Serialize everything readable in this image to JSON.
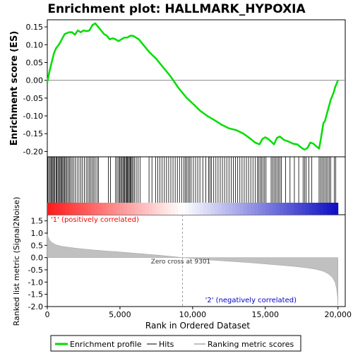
{
  "chart_data": {
    "type": "line",
    "title": "Enrichment plot: HALLMARK_HYPOXIA",
    "es_panel": {
      "ylabel": "Enrichment score (ES)",
      "ylim": [
        -0.215,
        0.17
      ],
      "yticks": [
        -0.2,
        -0.15,
        -0.1,
        -0.05,
        0.0,
        0.05,
        0.1,
        0.15
      ],
      "ytick_labels": [
        "-0.20",
        "-0.15",
        "-0.10",
        "-0.05",
        "0.00",
        "0.05",
        "0.10",
        "0.15"
      ],
      "series": [
        {
          "name": "Enrichment profile",
          "color": "#00dd00",
          "x": [
            0,
            150,
            300,
            450,
            600,
            800,
            1000,
            1200,
            1500,
            1700,
            1900,
            2100,
            2300,
            2500,
            2700,
            2900,
            3100,
            3300,
            3500,
            3700,
            3900,
            4100,
            4300,
            4500,
            4700,
            4900,
            5100,
            5300,
            5500,
            5700,
            5900,
            6100,
            6300,
            6600,
            7000,
            7500,
            8000,
            8500,
            9000,
            9300,
            9600,
            10000,
            10500,
            11000,
            11500,
            12000,
            12500,
            13000,
            13500,
            14000,
            14300,
            14600,
            14800,
            15000,
            15200,
            15400,
            15600,
            15800,
            16000,
            16300,
            16600,
            16900,
            17200,
            17500,
            17700,
            17900,
            18100,
            18300,
            18500,
            18700,
            18800,
            18900,
            19000,
            19100,
            19200,
            19300,
            19400,
            19500,
            19600,
            19700,
            19800,
            19900,
            20000
          ],
          "y": [
            -0.005,
            0.025,
            0.05,
            0.075,
            0.09,
            0.1,
            0.115,
            0.13,
            0.135,
            0.135,
            0.128,
            0.14,
            0.135,
            0.14,
            0.138,
            0.14,
            0.155,
            0.16,
            0.15,
            0.14,
            0.13,
            0.125,
            0.115,
            0.118,
            0.115,
            0.11,
            0.115,
            0.12,
            0.12,
            0.125,
            0.125,
            0.12,
            0.115,
            0.1,
            0.08,
            0.06,
            0.035,
            0.01,
            -0.02,
            -0.035,
            -0.05,
            -0.065,
            -0.085,
            -0.1,
            -0.112,
            -0.125,
            -0.135,
            -0.14,
            -0.15,
            -0.165,
            -0.175,
            -0.18,
            -0.165,
            -0.16,
            -0.165,
            -0.172,
            -0.18,
            -0.162,
            -0.158,
            -0.168,
            -0.172,
            -0.178,
            -0.18,
            -0.19,
            -0.195,
            -0.19,
            -0.175,
            -0.178,
            -0.185,
            -0.192,
            -0.17,
            -0.145,
            -0.12,
            -0.115,
            -0.1,
            -0.085,
            -0.07,
            -0.055,
            -0.045,
            -0.035,
            -0.02,
            -0.01,
            0.0
          ]
        }
      ],
      "zero_line": 0
    },
    "hits_panel": {
      "legend_name": "Hits",
      "hit_positions": [
        40,
        120,
        200,
        260,
        330,
        390,
        450,
        520,
        600,
        660,
        730,
        800,
        870,
        930,
        1000,
        1060,
        1130,
        1200,
        1270,
        1350,
        1430,
        1520,
        1600,
        1700,
        1800,
        1920,
        2050,
        2180,
        2300,
        2420,
        2550,
        2680,
        2800,
        2900,
        3000,
        3100,
        3200,
        3300,
        3420,
        3520,
        4200,
        4350,
        4700,
        4800,
        4900,
        4980,
        5050,
        5120,
        5200,
        5270,
        5330,
        5400,
        5460,
        5520,
        5580,
        5640,
        5700,
        5760,
        5830,
        5900,
        6000,
        6120,
        6250,
        6380,
        7000,
        7200,
        7450,
        7600,
        7750,
        7900,
        8050,
        8200,
        8350,
        8500,
        8650,
        8800,
        8950,
        9100,
        9250,
        9400,
        9500,
        9600,
        9700,
        9800,
        9900,
        10050,
        10200,
        10350,
        10500,
        10700,
        10900,
        11100,
        11200,
        11300,
        11450,
        11600,
        11750,
        11900,
        12050,
        12200,
        12350,
        12500,
        12650,
        12800,
        12950,
        13100,
        13250,
        13400,
        13550,
        13700,
        13850,
        14000,
        14150,
        14300,
        14450,
        14550,
        14650,
        14750,
        14850,
        14950,
        15050,
        15400,
        15500,
        15600,
        15700,
        15800,
        15900,
        16000,
        16100,
        16400,
        16700,
        17000,
        17300,
        17600,
        17700,
        17800,
        18000,
        18200,
        18700,
        18800,
        18900,
        19000,
        19100,
        19200,
        19300,
        19400,
        19500,
        19750,
        19850
      ]
    },
    "metric_panel": {
      "ylabel": "Ranked list metric (Signal2Noise)",
      "ylim": [
        -2.0,
        1.75
      ],
      "yticks": [
        -2.0,
        -1.5,
        -1.0,
        -0.5,
        0.0,
        0.5,
        1.0,
        1.5
      ],
      "ytick_labels": [
        "-2.0",
        "-1.5",
        "-1.0",
        "-0.5",
        "0.0",
        "0.5",
        "1.0",
        "1.5"
      ],
      "legend_name": "Ranking metric scores",
      "curve_x": [
        0,
        50,
        150,
        300,
        600,
        1000,
        1500,
        2000,
        3000,
        4000,
        5000,
        6000,
        7000,
        8000,
        9301,
        10000,
        11000,
        12000,
        13000,
        14000,
        15000,
        16000,
        17000,
        18000,
        18500,
        19000,
        19300,
        19600,
        19800,
        19900,
        19970,
        20000
      ],
      "curve_y": [
        0.95,
        0.85,
        0.72,
        0.62,
        0.52,
        0.46,
        0.42,
        0.38,
        0.32,
        0.27,
        0.23,
        0.18,
        0.13,
        0.08,
        0.0,
        -0.04,
        -0.09,
        -0.13,
        -0.17,
        -0.21,
        -0.26,
        -0.31,
        -0.36,
        -0.43,
        -0.48,
        -0.56,
        -0.65,
        -0.8,
        -1.0,
        -1.25,
        -1.6,
        -1.95
      ],
      "zero_cross_label": "Zero cross at 9301",
      "zero_cross": 9301,
      "pos_label": "'1' (positively correlated)",
      "neg_label": "'2' (negatively correlated)"
    },
    "xaxis": {
      "xlabel": "Rank in Ordered Dataset",
      "xlim": [
        0,
        20500
      ],
      "xticks": [
        0,
        5000,
        10000,
        15000,
        20000
      ],
      "xtick_labels": [
        "0",
        "5,000",
        "10,000",
        "15,000",
        "20,000"
      ]
    },
    "legend": {
      "placement": "bottom",
      "entries": [
        "Enrichment profile",
        "Hits",
        "Ranking metric scores"
      ]
    },
    "colors": {
      "profile": "#00dd00",
      "hits": "#000000",
      "metric_fill": "#c0c0c0",
      "pos": "#ff0000",
      "neg": "#0000cc",
      "pos_label": "#ff0000",
      "neg_label": "#0000cc"
    }
  }
}
